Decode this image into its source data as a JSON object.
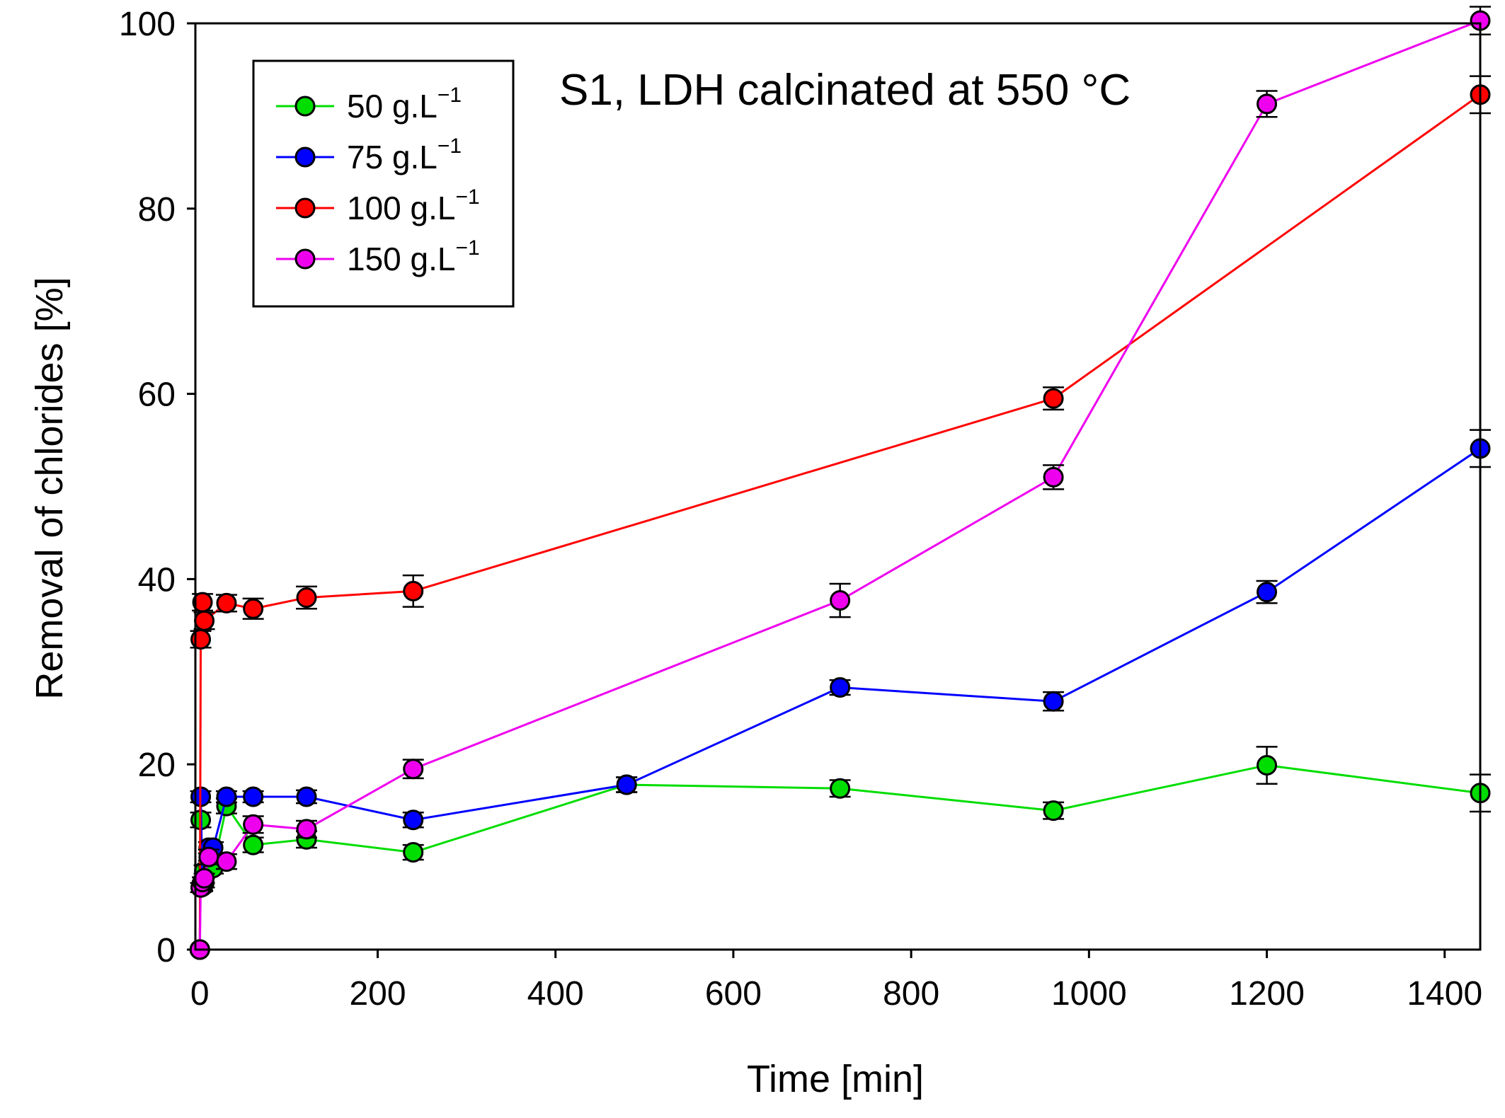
{
  "chart_data": {
    "type": "line",
    "title": "",
    "annotation": "S1, LDH calcinated at 550 °C",
    "xlabel": "Time [min]",
    "ylabel": "Removal of chlorides [%]",
    "xlim": [
      -5,
      1440
    ],
    "ylim": [
      0,
      100
    ],
    "xticks": [
      0,
      200,
      400,
      600,
      800,
      1000,
      1200,
      1400
    ],
    "yticks": [
      0,
      20,
      40,
      60,
      80,
      100
    ],
    "legend_position": "top-left",
    "series": [
      {
        "name": "50 g.L",
        "unit_sup": "−1",
        "color": "#00dd00",
        "x": [
          0,
          1,
          3,
          5,
          10,
          15,
          30,
          60,
          120,
          240,
          480,
          720,
          960,
          1200,
          1440
        ],
        "y": [
          0,
          14.0,
          6.8,
          8.5,
          9.0,
          8.8,
          15.5,
          11.3,
          11.9,
          10.5,
          17.8,
          17.4,
          15.0,
          19.9,
          16.9
        ],
        "err": [
          0,
          0.8,
          0.5,
          0.6,
          0.6,
          0.6,
          0.8,
          0.8,
          0.9,
          0.8,
          0.8,
          0.9,
          0.9,
          2.0,
          2.0
        ]
      },
      {
        "name": "75 g.L",
        "unit_sup": "−1",
        "color": "#0000ff",
        "x": [
          0,
          1,
          3,
          5,
          10,
          15,
          30,
          60,
          120,
          240,
          480,
          720,
          960,
          1200,
          1440
        ],
        "y": [
          0,
          16.5,
          6.9,
          7.2,
          11.0,
          11.0,
          16.5,
          16.5,
          16.5,
          14.0,
          17.8,
          28.3,
          26.8,
          38.6,
          54.1
        ],
        "err": [
          0,
          0.6,
          0.5,
          0.5,
          0.6,
          0.6,
          0.6,
          0.6,
          0.7,
          0.8,
          0.8,
          0.8,
          1.0,
          1.2,
          2.0
        ]
      },
      {
        "name": "100 g.L",
        "unit_sup": "−1",
        "color": "#ff0000",
        "x": [
          0,
          1,
          3,
          5,
          30,
          60,
          120,
          240,
          960,
          1440
        ],
        "y": [
          0,
          33.5,
          37.5,
          35.5,
          37.4,
          36.8,
          38.0,
          38.7,
          59.5,
          92.3
        ],
        "err": [
          0,
          0.9,
          0.9,
          0.9,
          0.9,
          1.1,
          1.2,
          1.7,
          1.2,
          2.0
        ]
      },
      {
        "name": "150 g.L",
        "unit_sup": "−1",
        "color": "#ee00ee",
        "x": [
          0,
          1,
          3,
          5,
          10,
          30,
          60,
          120,
          240,
          720,
          960,
          1200,
          1440
        ],
        "y": [
          0,
          6.7,
          7.3,
          7.7,
          10.0,
          9.5,
          13.5,
          13.0,
          19.5,
          37.7,
          51.0,
          91.3,
          100.3
        ],
        "err": [
          0,
          0.5,
          0.5,
          0.5,
          0.8,
          0.8,
          0.9,
          0.9,
          1.0,
          1.8,
          1.3,
          1.4,
          1.5
        ]
      }
    ]
  }
}
